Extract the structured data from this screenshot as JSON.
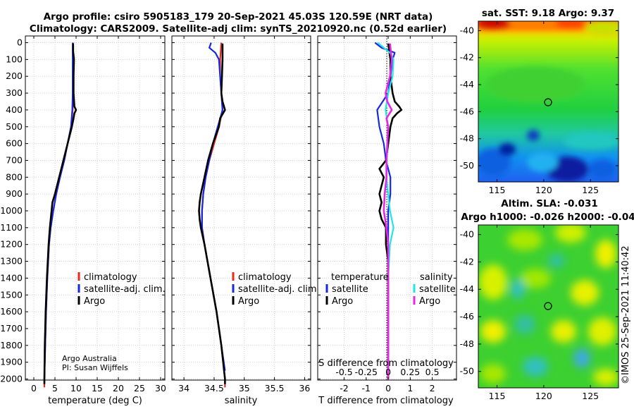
{
  "title": {
    "line1": "Argo profile: csiro 5905183_179 20-Sep-2021 45.03S 120.59E (NRT data)",
    "line2": "Climatology: CARS2009. Satellite-adj clim: synTS_20210920.nc (0.52d earlier)"
  },
  "colors": {
    "climatology": "#e8281e",
    "satellite_adj": "#1428e6",
    "argo": "#000000",
    "sat_temp": "#1428e6",
    "sat_sal": "#20e6e6",
    "argo_sal": "#e628e6",
    "argo_temp": "#000000"
  },
  "chart_data": [
    {
      "id": "temperature",
      "type": "line",
      "xlabel": "temperature (deg C)",
      "ylabel": "",
      "xlim": [
        -2,
        31
      ],
      "ylim": [
        2060,
        0
      ],
      "xticks": [
        "0",
        "5",
        "10",
        "15",
        "20",
        "25",
        "30"
      ],
      "xtick_values": [
        0,
        5,
        10,
        15,
        20,
        25,
        30
      ],
      "yticks": [
        "0",
        "100",
        "200",
        "300",
        "400",
        "500",
        "600",
        "700",
        "800",
        "900",
        "1000",
        "1100",
        "1200",
        "1300",
        "1400",
        "1500",
        "1600",
        "1700",
        "1800",
        "1900",
        "2000"
      ],
      "ytick_values": [
        0,
        100,
        200,
        300,
        400,
        500,
        600,
        700,
        800,
        900,
        1000,
        1100,
        1200,
        1300,
        1400,
        1500,
        1600,
        1700,
        1800,
        1900,
        2000
      ],
      "legend": [
        "climatology",
        "satellite-adj. clim.",
        "Argo"
      ],
      "annotation": [
        "Argo Australia",
        "PI: Susan Wijffels"
      ],
      "series": [
        {
          "name": "climatology",
          "color": "#e8281e",
          "depth": [
            0,
            100,
            200,
            300,
            400,
            500,
            600,
            700,
            800,
            900,
            1000,
            1100,
            1200,
            1400,
            1600,
            1800,
            2000,
            2050
          ],
          "values": [
            9.3,
            9.3,
            9.3,
            9.3,
            9.2,
            8.8,
            8.0,
            7.2,
            6.2,
            5.3,
            4.6,
            4.0,
            3.6,
            3.2,
            2.9,
            2.7,
            2.5,
            2.5
          ]
        },
        {
          "name": "satellite-adj. clim.",
          "color": "#1428e6",
          "depth": [
            0,
            100,
            200,
            300,
            400,
            500,
            600,
            700,
            800,
            900,
            1000,
            1100,
            1200,
            1400,
            1600,
            1800,
            2000
          ],
          "values": [
            9.2,
            9.2,
            9.2,
            9.2,
            9.1,
            8.8,
            8.0,
            7.2,
            6.2,
            5.3,
            4.6,
            4.0,
            3.6,
            3.2,
            2.9,
            2.7,
            2.5
          ]
        },
        {
          "name": "Argo",
          "color": "#000000",
          "depth": [
            5,
            50,
            100,
            200,
            300,
            380,
            400,
            420,
            450,
            500,
            600,
            700,
            800,
            900,
            950,
            1000,
            1050,
            1100,
            1200,
            1400,
            1600,
            1800,
            2000,
            2030
          ],
          "values": [
            9.3,
            9.3,
            9.5,
            9.4,
            9.4,
            9.6,
            10.0,
            9.6,
            9.4,
            9.0,
            8.0,
            7.0,
            6.0,
            5.0,
            4.4,
            4.2,
            4.0,
            3.8,
            3.5,
            3.1,
            2.8,
            2.6,
            2.5,
            2.5
          ]
        }
      ]
    },
    {
      "id": "salinity",
      "type": "line",
      "xlabel": "salinity",
      "ylabel": "",
      "xlim": [
        33.8,
        36.1
      ],
      "ylim": [
        2060,
        0
      ],
      "xticks": [
        "34",
        "34.5",
        "35",
        "35.5",
        "36"
      ],
      "xtick_values": [
        34,
        34.5,
        35,
        35.5,
        36
      ],
      "legend": [
        "climatology",
        "satellite-adj. clim.",
        "Argo"
      ],
      "series": [
        {
          "name": "climatology",
          "color": "#e8281e",
          "depth": [
            0,
            100,
            200,
            300,
            400,
            500,
            600,
            700,
            800,
            900,
            1000,
            1100,
            1200,
            1400,
            1600,
            1800,
            2000,
            2050
          ],
          "values": [
            34.62,
            34.6,
            34.6,
            34.62,
            34.64,
            34.58,
            34.5,
            34.42,
            34.36,
            34.32,
            34.3,
            34.3,
            34.34,
            34.44,
            34.54,
            34.62,
            34.68,
            34.68
          ]
        },
        {
          "name": "satellite-adj. clim.",
          "color": "#1428e6",
          "depth": [
            0,
            30,
            60,
            100,
            200,
            300,
            400,
            500,
            600,
            700,
            800,
            900,
            1000,
            1100,
            1200,
            1400,
            1600,
            1800,
            1950
          ],
          "values": [
            34.45,
            34.42,
            34.52,
            34.58,
            34.6,
            34.62,
            34.64,
            34.56,
            34.48,
            34.42,
            34.36,
            34.32,
            34.3,
            34.3,
            34.34,
            34.44,
            34.54,
            34.62,
            34.68
          ]
        },
        {
          "name": "Argo",
          "color": "#000000",
          "depth": [
            5,
            100,
            200,
            300,
            350,
            400,
            450,
            500,
            600,
            700,
            800,
            900,
            950,
            1000,
            1050,
            1100,
            1200,
            1400,
            1600,
            1800,
            2000,
            2030
          ],
          "values": [
            34.64,
            34.64,
            34.63,
            34.62,
            34.64,
            34.68,
            34.6,
            34.58,
            34.48,
            34.4,
            34.34,
            34.28,
            34.26,
            34.25,
            34.26,
            34.28,
            34.34,
            34.44,
            34.54,
            34.62,
            34.68,
            34.68
          ]
        }
      ]
    },
    {
      "id": "differences",
      "type": "line",
      "xlabel": "T difference from climatology",
      "xlabel_top": "S difference from climatology",
      "xlim": [
        -3.2,
        3.1
      ],
      "ylim": [
        2060,
        0
      ],
      "xticks": [
        "-2",
        "-1",
        "0",
        "1",
        "2"
      ],
      "xtick_values": [
        -2,
        -1,
        0,
        1,
        2
      ],
      "xticks_s": [
        "-0.5",
        "-0.25",
        "0",
        "0.25",
        "0.5"
      ],
      "xtick_s_values": [
        -0.5,
        -0.25,
        0,
        0.25,
        0.5
      ],
      "s_scale": 4,
      "legend_temperature_title": "temperature",
      "legend_salinity_title": "salinity",
      "legend_temperature": [
        "satellite",
        "Argo"
      ],
      "legend_salinity": [
        "satellite",
        "Argo"
      ],
      "series": [
        {
          "name": "temperature satellite",
          "color": "#1428e6",
          "depth": [
            0,
            30,
            60,
            100,
            200,
            300,
            400,
            500,
            600,
            700,
            800,
            900,
            1000,
            1200,
            1500,
            1800,
            2000
          ],
          "values": [
            -0.6,
            -0.3,
            0.3,
            0.2,
            0.1,
            0.0,
            -0.5,
            -0.4,
            -0.2,
            -0.1,
            0.1,
            0.1,
            0.0,
            0.0,
            0.0,
            0.0,
            0.0
          ]
        },
        {
          "name": "temperature Argo",
          "color": "#000000",
          "depth": [
            5,
            100,
            200,
            300,
            350,
            380,
            400,
            420,
            450,
            500,
            600,
            700,
            750,
            800,
            850,
            900,
            950,
            1000,
            1050,
            1100,
            1200,
            1300,
            1400,
            1600,
            1800,
            2000
          ],
          "values": [
            0.0,
            0.1,
            0.1,
            0.2,
            0.3,
            0.5,
            0.6,
            0.4,
            0.2,
            0.1,
            0.0,
            -0.1,
            -0.4,
            -0.2,
            -0.3,
            -0.4,
            -0.3,
            -0.4,
            -0.3,
            -0.1,
            -0.1,
            0.0,
            0.0,
            0.0,
            0.0,
            0.0
          ]
        },
        {
          "name": "salinity satellite",
          "color": "#20e6e6",
          "depth": [
            0,
            30,
            60,
            100,
            200,
            300,
            400,
            500,
            600,
            800,
            1000,
            1100,
            1200,
            1400,
            1600,
            1800,
            2000
          ],
          "values": [
            -0.12,
            -0.05,
            0.02,
            0.06,
            0.05,
            0.0,
            -0.03,
            0.0,
            -0.01,
            -0.02,
            0.02,
            0.06,
            0.02,
            0.0,
            0.0,
            0.0,
            0.0
          ]
        },
        {
          "name": "salinity Argo",
          "color": "#e628e6",
          "depth": [
            5,
            100,
            200,
            300,
            350,
            400,
            450,
            500,
            600,
            700,
            800,
            900,
            1000,
            1100,
            1200,
            1400,
            1600,
            1800,
            2000
          ],
          "values": [
            0.02,
            0.04,
            0.02,
            -0.03,
            -0.01,
            0.04,
            -0.02,
            0.0,
            -0.01,
            -0.02,
            -0.02,
            -0.04,
            -0.05,
            -0.02,
            0.0,
            0.0,
            0.0,
            0.0,
            0.0
          ]
        }
      ]
    },
    {
      "id": "sst_map",
      "type": "heatmap",
      "title": "sat. SST: 9.18 Argo: 9.37",
      "xlim": [
        113,
        128
      ],
      "ylim": [
        -51.2,
        -39.3
      ],
      "xticks": [
        "115",
        "120",
        "125"
      ],
      "xtick_values": [
        115,
        120,
        125
      ],
      "yticks": [
        "-40",
        "-42",
        "-44",
        "-46",
        "-48",
        "-50"
      ],
      "ytick_values": [
        -40,
        -42,
        -44,
        -46,
        -48,
        -50
      ],
      "marker": [
        120.59,
        -45.03
      ]
    },
    {
      "id": "sla_map",
      "type": "heatmap",
      "title": "Altim. SLA: -0.031",
      "subtitle": "Argo h1000: -0.026 h2000: -0.04",
      "xlim": [
        113,
        128
      ],
      "ylim": [
        -51.2,
        -39.3
      ],
      "xticks": [
        "115",
        "120",
        "125"
      ],
      "xtick_values": [
        115,
        120,
        125
      ],
      "yticks": [
        "-40",
        "-42",
        "-44",
        "-46",
        "-48",
        "-50"
      ],
      "ytick_values": [
        -40,
        -42,
        -44,
        -46,
        -48,
        -50
      ],
      "marker": [
        120.59,
        -45.03
      ]
    }
  ],
  "credit": "©IMOS 25-Sep-2021 11:40:42"
}
